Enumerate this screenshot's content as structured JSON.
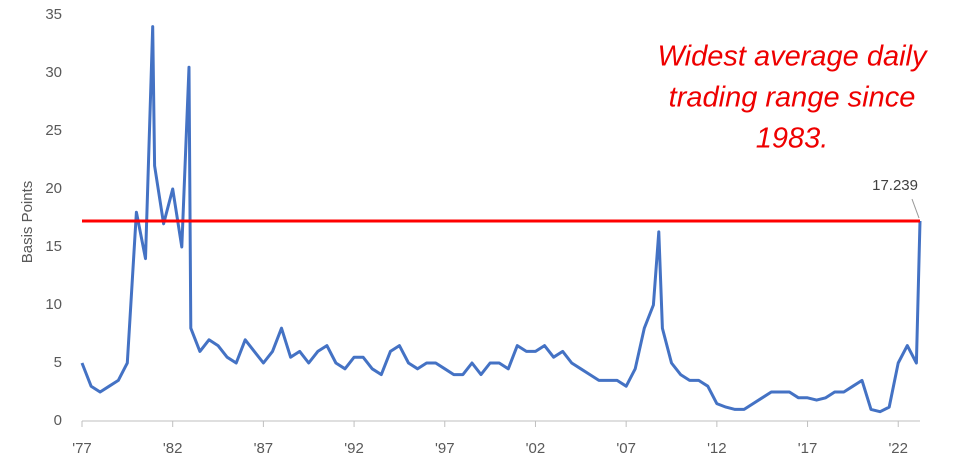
{
  "chart_data": {
    "type": "line",
    "y_label": "Basis Points",
    "annotation": [
      "Widest average daily",
      "trading range since",
      "1983."
    ],
    "color": "#4472c4",
    "reference_line_color": "#ff0000",
    "x": [
      1977.0,
      1977.5,
      1978.0,
      1978.5,
      1979.0,
      1979.5,
      1980.0,
      1980.5,
      1980.9,
      1981.0,
      1981.5,
      1982.0,
      1982.5,
      1982.9,
      1983.0,
      1983.5,
      1984.0,
      1984.5,
      1985.0,
      1985.5,
      1986.0,
      1986.5,
      1987.0,
      1987.5,
      1988.0,
      1988.5,
      1989.0,
      1989.5,
      1990.0,
      1990.5,
      1991.0,
      1991.5,
      1992.0,
      1992.5,
      1993.0,
      1993.5,
      1994.0,
      1994.5,
      1995.0,
      1995.5,
      1996.0,
      1996.5,
      1997.0,
      1997.5,
      1998.0,
      1998.5,
      1999.0,
      1999.5,
      2000.0,
      2000.5,
      2001.0,
      2001.5,
      2002.0,
      2002.5,
      2003.0,
      2003.5,
      2004.0,
      2004.5,
      2005.0,
      2005.5,
      2006.0,
      2006.5,
      2007.0,
      2007.5,
      2008.0,
      2008.5,
      2008.8,
      2009.0,
      2009.5,
      2010.0,
      2010.5,
      2011.0,
      2011.5,
      2012.0,
      2012.5,
      2013.0,
      2013.5,
      2014.0,
      2014.5,
      2015.0,
      2015.5,
      2016.0,
      2016.5,
      2017.0,
      2017.5,
      2018.0,
      2018.5,
      2019.0,
      2019.5,
      2020.0,
      2020.5,
      2021.0,
      2021.5,
      2022.0,
      2022.5,
      2023.0,
      2023.2
    ],
    "values": [
      5,
      3,
      2.5,
      3,
      3.5,
      5,
      18,
      14,
      34,
      22,
      17,
      20,
      15,
      30.5,
      8,
      6,
      7,
      6.5,
      5.5,
      5,
      7,
      6,
      5,
      6,
      8,
      5.5,
      6,
      5,
      6,
      6.5,
      5,
      4.5,
      5.5,
      5.5,
      4.5,
      4,
      6,
      6.5,
      5,
      4.5,
      5,
      5,
      4.5,
      4,
      4,
      5,
      4,
      5,
      5,
      4.5,
      6.5,
      6,
      6,
      6.5,
      5.5,
      6,
      5,
      4.5,
      4,
      3.5,
      3.5,
      3.5,
      3,
      4.5,
      8,
      10,
      16.3,
      8,
      5,
      4,
      3.5,
      3.5,
      3,
      1.5,
      1.2,
      1,
      1,
      1.5,
      2,
      2.5,
      2.5,
      2.5,
      2,
      2,
      1.8,
      2,
      2.5,
      2.5,
      3,
      3.5,
      1,
      0.8,
      1.2,
      5,
      6.5,
      5,
      17.239
    ],
    "xlim": [
      1977,
      2023.2
    ],
    "xticks": [
      {
        "value": 1977,
        "label": "'77"
      },
      {
        "value": 1982,
        "label": "'82"
      },
      {
        "value": 1987,
        "label": "'87"
      },
      {
        "value": 1992,
        "label": "'92"
      },
      {
        "value": 1997,
        "label": "'97"
      },
      {
        "value": 2002,
        "label": "'02"
      },
      {
        "value": 2007,
        "label": "'07"
      },
      {
        "value": 2012,
        "label": "'12"
      },
      {
        "value": 2017,
        "label": "'17"
      },
      {
        "value": 2022,
        "label": "'22"
      }
    ],
    "ylim": [
      0,
      35
    ],
    "yticks": [
      0,
      5,
      10,
      15,
      20,
      25,
      30,
      35
    ],
    "grid": false
  }
}
